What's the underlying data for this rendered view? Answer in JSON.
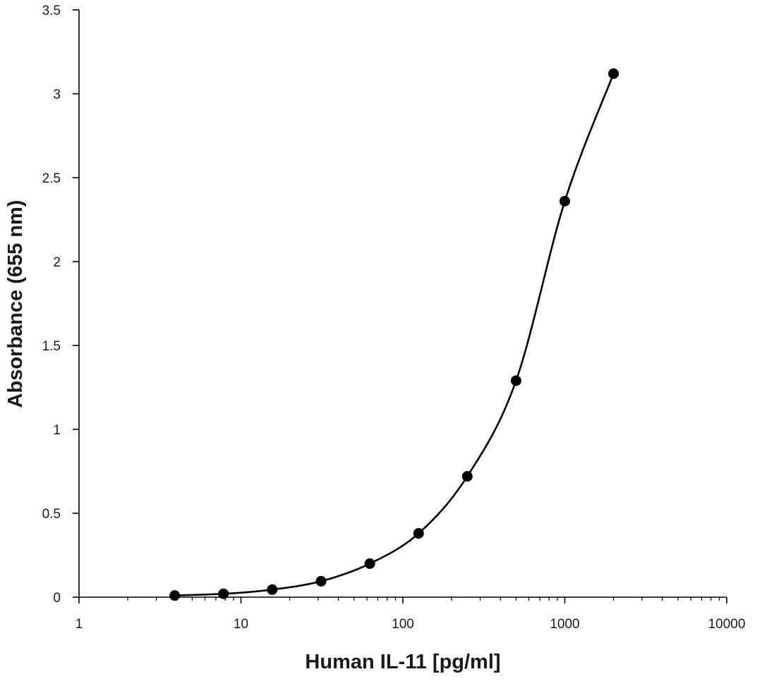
{
  "chart_data": {
    "type": "scatter",
    "title": "",
    "xlabel": "Human IL-11 [pg/ml]",
    "ylabel": "Absorbance (655 nm)",
    "x_scale": "log",
    "xlim": [
      1,
      10000
    ],
    "ylim": [
      0,
      3.5
    ],
    "x_ticks": [
      1,
      10,
      100,
      1000,
      10000
    ],
    "x_tick_labels": [
      "1",
      "10",
      "100",
      "1000",
      "10000"
    ],
    "y_ticks": [
      0,
      0.5,
      1,
      1.5,
      2,
      2.5,
      3,
      3.5
    ],
    "y_tick_labels": [
      "0",
      "0.5",
      "1",
      "1.5",
      "2",
      "2.5",
      "3",
      "3.5"
    ],
    "grid": false,
    "legend": "none",
    "series": [
      {
        "x": [
          3.9,
          7.8,
          15.6,
          31.25,
          62.5,
          125,
          250,
          500,
          1000,
          2000
        ],
        "y": [
          0.01,
          0.02,
          0.045,
          0.095,
          0.2,
          0.38,
          0.72,
          1.29,
          2.36,
          3.12
        ],
        "marker": "circle",
        "line": "smooth",
        "color": "#000000"
      }
    ]
  }
}
